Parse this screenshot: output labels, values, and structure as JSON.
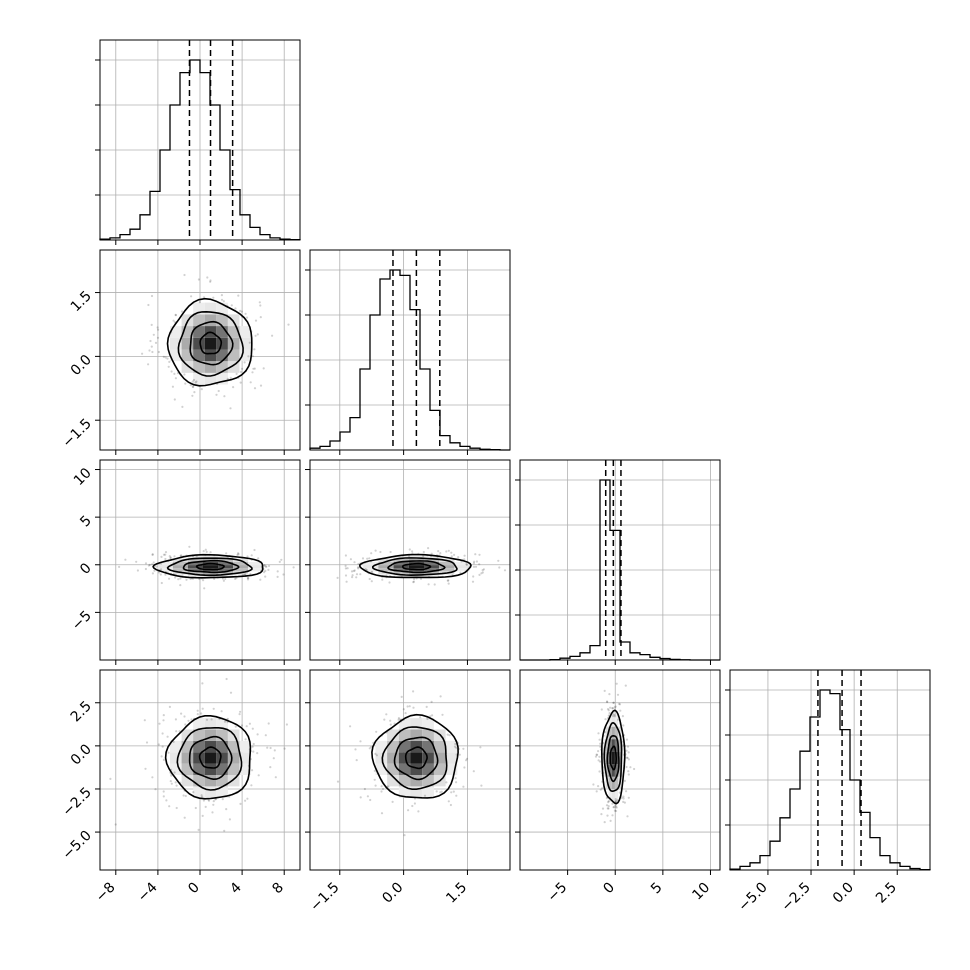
{
  "chart_data": {
    "type": "corner",
    "title": "",
    "parameters": [
      {
        "mean": 1.0,
        "sd": 2.0,
        "range": [
          -9.5,
          9.5
        ],
        "ticks": [
          -8,
          -4,
          0,
          4,
          8
        ],
        "tick_labels": [
          "−8",
          "−4",
          "0",
          "4",
          "8"
        ],
        "quantiles": [
          -1.0,
          1.0,
          3.1
        ],
        "hist_bins": [
          0.005,
          0.012,
          0.03,
          0.06,
          0.14,
          0.27,
          0.5,
          0.75,
          0.93,
          1.0,
          0.93,
          0.75,
          0.5,
          0.28,
          0.14,
          0.07,
          0.03,
          0.012,
          0.005,
          0.002
        ]
      },
      {
        "mean": 0.3,
        "sd": 0.5,
        "range": [
          -2.2,
          2.5
        ],
        "ticks": [
          -1.5,
          0.0,
          1.5
        ],
        "tick_labels": [
          "−1.5",
          "0.0",
          "1.5"
        ],
        "quantiles": [
          -0.25,
          0.3,
          0.85
        ],
        "hist_bins": [
          0.01,
          0.02,
          0.05,
          0.1,
          0.18,
          0.45,
          0.75,
          0.95,
          1.0,
          0.97,
          0.78,
          0.45,
          0.22,
          0.08,
          0.04,
          0.02,
          0.01,
          0.004,
          0.002,
          0.0
        ]
      },
      {
        "mean": -0.2,
        "sd": 1.0,
        "range": [
          -10,
          11
        ],
        "ticks": [
          -5,
          0,
          5,
          10
        ],
        "tick_labels": [
          "−5",
          "0",
          "5",
          "10"
        ],
        "quantiles": [
          -1.0,
          -0.2,
          0.6
        ],
        "hist_bins": [
          0.0,
          0.0,
          0.0,
          0.002,
          0.01,
          0.02,
          0.04,
          0.08,
          1.0,
          0.72,
          0.1,
          0.04,
          0.03,
          0.015,
          0.008,
          0.003,
          0.001,
          0.0,
          0.0,
          0.0
        ]
      },
      {
        "mean": -0.7,
        "sd": 1.2,
        "range": [
          -7.2,
          4.4
        ],
        "ticks": [
          -5.0,
          -2.5,
          0.0,
          2.5
        ],
        "tick_labels": [
          "−5.0",
          "−2.5",
          "0.0",
          "2.5"
        ],
        "quantiles": [
          -2.1,
          -0.7,
          0.4
        ],
        "hist_bins": [
          0.005,
          0.02,
          0.04,
          0.08,
          0.16,
          0.29,
          0.45,
          0.66,
          0.85,
          1.0,
          0.98,
          0.78,
          0.5,
          0.32,
          0.18,
          0.08,
          0.04,
          0.02,
          0.008,
          0.002
        ]
      }
    ],
    "y_axis_ticks": [
      null,
      {
        "ticks": [
          -1.5,
          0.0,
          1.5
        ],
        "tick_labels": [
          "−1.5",
          "0.0",
          "1.5"
        ]
      },
      {
        "ticks": [
          -5,
          0,
          5,
          10
        ],
        "tick_labels": [
          "−5",
          "0",
          "5",
          "10"
        ]
      },
      {
        "ticks": [
          -5.0,
          -2.5,
          0.0,
          2.5
        ],
        "tick_labels": [
          "−5.0",
          "−2.5",
          "0.0",
          "2.5"
        ]
      }
    ],
    "pairs": [
      {
        "x": 0,
        "y": 1,
        "sx": 1.0,
        "sy": 1.0,
        "rho": 0.0
      },
      {
        "x": 0,
        "y": 2,
        "sx": 1.3,
        "sy": 0.6,
        "rho": 0.0
      },
      {
        "x": 1,
        "y": 2,
        "sx": 1.3,
        "sy": 0.6,
        "rho": 0.0
      },
      {
        "x": 0,
        "y": 3,
        "sx": 1.0,
        "sy": 1.0,
        "rho": 0.0
      },
      {
        "x": 1,
        "y": 3,
        "sx": 1.0,
        "sy": 1.0,
        "rho": 0.0
      },
      {
        "x": 2,
        "y": 3,
        "sx": 0.6,
        "sy": 1.1,
        "rho": 0.0
      }
    ],
    "contour_levels_sigma": [
      0.5,
      1.0,
      1.5,
      2.0
    ],
    "grid": true,
    "scatter_color": "#000000",
    "line_color": "#000000"
  }
}
